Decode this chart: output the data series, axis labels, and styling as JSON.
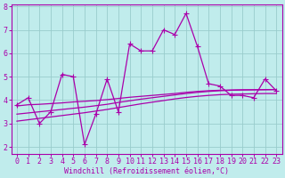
{
  "xlabel": "Windchill (Refroidissement éolien,°C)",
  "bg_color": "#c0ecec",
  "line_color": "#aa00aa",
  "grid_color": "#99cccc",
  "xlim": [
    -0.5,
    23.5
  ],
  "ylim": [
    1.7,
    8.1
  ],
  "xticks": [
    0,
    1,
    2,
    3,
    4,
    5,
    6,
    7,
    8,
    9,
    10,
    11,
    12,
    13,
    14,
    15,
    16,
    17,
    18,
    19,
    20,
    21,
    22,
    23
  ],
  "yticks": [
    2,
    3,
    4,
    5,
    6,
    7,
    8
  ],
  "data_x": [
    0,
    1,
    2,
    3,
    4,
    5,
    6,
    7,
    8,
    9,
    10,
    11,
    12,
    13,
    14,
    15,
    16,
    17,
    18,
    19,
    20,
    21,
    22,
    23
  ],
  "data_y_main": [
    3.8,
    4.1,
    3.0,
    3.5,
    5.1,
    5.0,
    2.1,
    3.4,
    4.9,
    3.5,
    6.4,
    6.1,
    6.1,
    7.0,
    6.8,
    7.7,
    6.3,
    4.7,
    4.6,
    4.2,
    4.2,
    4.1,
    4.9,
    4.4
  ],
  "trend1_x": [
    0,
    1,
    2,
    3,
    4,
    5,
    6,
    7,
    8,
    9,
    10,
    11,
    12,
    13,
    14,
    15,
    16,
    17,
    18,
    19,
    20,
    21,
    22,
    23
  ],
  "trend1_y": [
    3.75,
    3.8,
    3.82,
    3.85,
    3.88,
    3.92,
    3.95,
    3.98,
    4.02,
    4.07,
    4.12,
    4.16,
    4.2,
    4.24,
    4.28,
    4.33,
    4.37,
    4.4,
    4.42,
    4.43,
    4.44,
    4.44,
    4.45,
    4.45
  ],
  "trend2_x": [
    0,
    1,
    2,
    3,
    4,
    5,
    6,
    7,
    8,
    9,
    10,
    11,
    12,
    13,
    14,
    15,
    16,
    17,
    18,
    19,
    20,
    21,
    22,
    23
  ],
  "trend2_y": [
    3.4,
    3.45,
    3.5,
    3.55,
    3.6,
    3.65,
    3.7,
    3.76,
    3.82,
    3.9,
    3.97,
    4.04,
    4.1,
    4.16,
    4.22,
    4.28,
    4.33,
    4.37,
    4.4,
    4.42,
    4.43,
    4.44,
    4.44,
    4.45
  ],
  "trend3_x": [
    0,
    1,
    2,
    3,
    4,
    5,
    6,
    7,
    8,
    9,
    10,
    11,
    12,
    13,
    14,
    15,
    16,
    17,
    18,
    19,
    20,
    21,
    22,
    23
  ],
  "trend3_y": [
    3.1,
    3.16,
    3.22,
    3.28,
    3.34,
    3.4,
    3.46,
    3.53,
    3.6,
    3.68,
    3.76,
    3.84,
    3.91,
    3.98,
    4.05,
    4.11,
    4.16,
    4.2,
    4.23,
    4.25,
    4.26,
    4.27,
    4.28,
    4.28
  ],
  "font_family": "monospace",
  "font_size": 6,
  "tick_font_size": 6,
  "marker": "+",
  "marker_size": 4,
  "linewidth": 0.9
}
